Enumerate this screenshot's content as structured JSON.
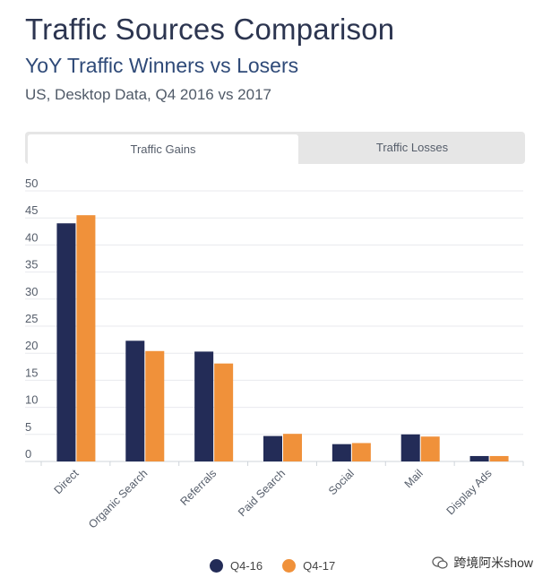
{
  "header": {
    "title": "Traffic Sources Comparison",
    "subtitle": "YoY Traffic Winners vs Losers",
    "description": "US, Desktop Data, Q4 2016 vs 2017"
  },
  "tabs": [
    {
      "label": "Traffic Gains",
      "active": true
    },
    {
      "label": "Traffic Losses",
      "active": false
    }
  ],
  "chart_data": {
    "type": "bar",
    "title": "Traffic Sources Comparison",
    "categories": [
      "Direct",
      "Organic Search",
      "Referrals",
      "Paid Search",
      "Social",
      "Mail",
      "Display Ads"
    ],
    "series": [
      {
        "name": "Q4-16",
        "color": "#232c57",
        "values": [
          44,
          22.3,
          20.3,
          4.7,
          3.2,
          5,
          1
        ]
      },
      {
        "name": "Q4-17",
        "color": "#f0913a",
        "values": [
          45.5,
          20.4,
          18.1,
          5.1,
          3.4,
          4.6,
          1
        ]
      }
    ],
    "yticks": [
      0,
      5,
      10,
      15,
      20,
      25,
      30,
      35,
      40,
      45,
      50
    ],
    "ylim": [
      0,
      50
    ],
    "grid": true,
    "legend": "bottom-center",
    "xlabel": "",
    "ylabel": ""
  },
  "legend": {
    "items": [
      {
        "label": "Q4-16",
        "color": "#232c57"
      },
      {
        "label": "Q4-17",
        "color": "#f0913a"
      }
    ]
  },
  "watermark": {
    "text": "跨境阿米show",
    "icon": "wechat-icon"
  }
}
